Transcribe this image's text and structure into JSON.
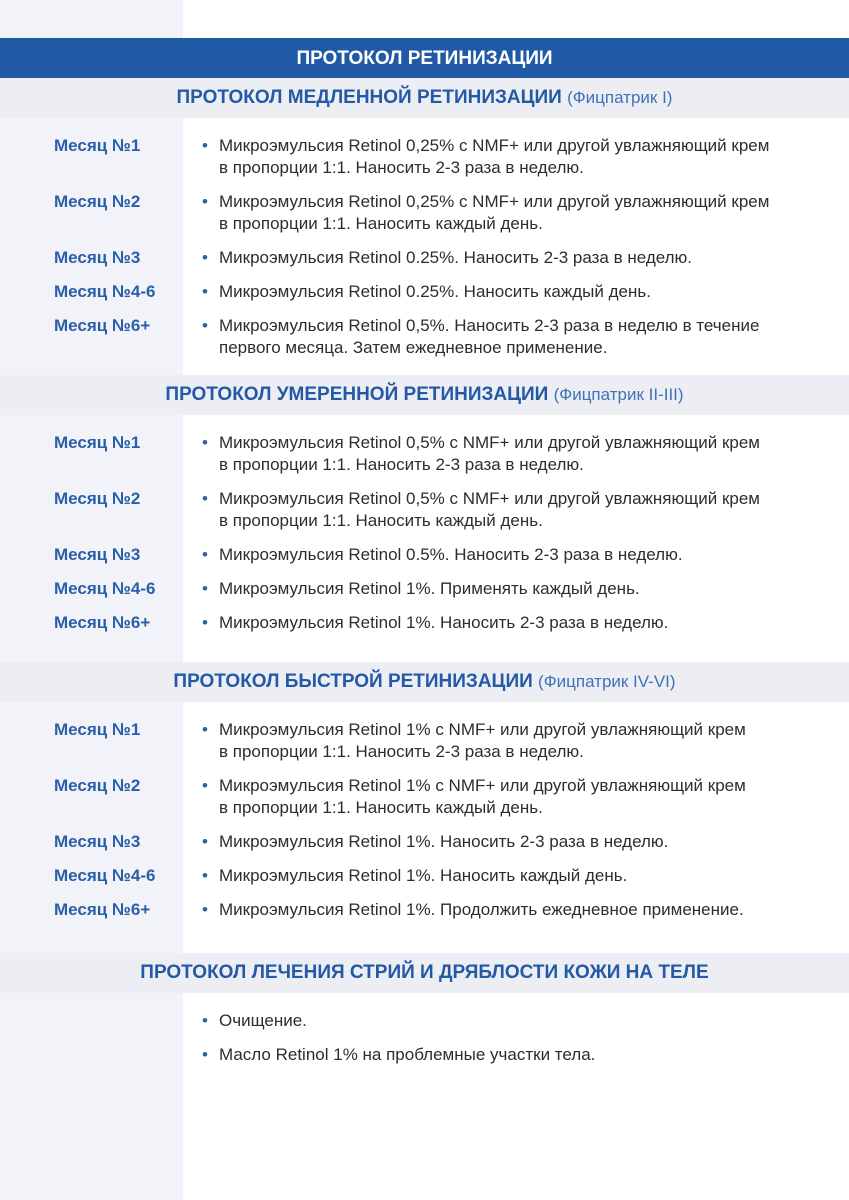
{
  "title": "ПРОТОКОЛ РЕТИНИЗАЦИИ",
  "colors": {
    "accent": "#2059a6",
    "section_bg": "#eceef3",
    "sidebar_bg": "#f1f3f8",
    "label": "#2a5ea8",
    "text": "#2d2d2d"
  },
  "sections": [
    {
      "title": "ПРОТОКОЛ МЕДЛЕННОЙ РЕТИНИЗАЦИИ",
      "subtitle": "(Фицпатрик I)",
      "rows": [
        {
          "label": "Месяц №1",
          "lines": [
            "Микроэмульсия Retinol 0,25% с NMF+ или другой увлажняющий крем",
            "в пропорции 1:1. Наносить 2-3 раза в неделю."
          ]
        },
        {
          "label": "Месяц №2",
          "lines": [
            "Микроэмульсия Retinol 0,25% с NMF+ или другой увлажняющий крем",
            "в пропорции 1:1. Наносить каждый день."
          ]
        },
        {
          "label": "Месяц №3",
          "lines": [
            "Микроэмульсия Retinol 0.25%. Наносить 2-3 раза в неделю."
          ]
        },
        {
          "label": "Месяц №4-6",
          "lines": [
            "Микроэмульсия Retinol 0.25%. Наносить каждый день."
          ]
        },
        {
          "label": "Месяц №6+",
          "lines": [
            "Микроэмульсия Retinol 0,5%. Наносить 2-3 раза в неделю в течение",
            "первого месяца. Затем ежедневное применение."
          ]
        }
      ]
    },
    {
      "title": "ПРОТОКОЛ УМЕРЕННОЙ РЕТИНИЗАЦИИ",
      "subtitle": "(Фицпатрик II-III)",
      "rows": [
        {
          "label": "Месяц №1",
          "lines": [
            "Микроэмульсия Retinol 0,5% с NMF+ или другой увлажняющий крем",
            "в пропорции 1:1. Наносить 2-3 раза в неделю."
          ]
        },
        {
          "label": "Месяц №2",
          "lines": [
            "Микроэмульсия Retinol 0,5% с NMF+ или другой увлажняющий крем",
            "в пропорции 1:1. Наносить каждый день."
          ]
        },
        {
          "label": "Месяц №3",
          "lines": [
            "Микроэмульсия Retinol 0.5%. Наносить 2-3 раза в неделю."
          ]
        },
        {
          "label": "Месяц №4-6",
          "lines": [
            "Микроэмульсия Retinol 1%. Применять каждый день."
          ]
        },
        {
          "label": "Месяц №6+",
          "lines": [
            "Микроэмульсия Retinol 1%. Наносить 2-3 раза в неделю."
          ]
        }
      ]
    },
    {
      "title": "ПРОТОКОЛ БЫСТРОЙ РЕТИНИЗАЦИИ",
      "subtitle": "(Фицпатрик IV-VI)",
      "rows": [
        {
          "label": "Месяц №1",
          "lines": [
            "Микроэмульсия Retinol 1% с NMF+ или другой увлажняющий крем",
            "в пропорции 1:1. Наносить 2-3 раза в неделю."
          ]
        },
        {
          "label": "Месяц №2",
          "lines": [
            "Микроэмульсия Retinol 1% с NMF+ или другой увлажняющий крем",
            "в пропорции 1:1. Наносить каждый день."
          ]
        },
        {
          "label": "Месяц №3",
          "lines": [
            "Микроэмульсия Retinol 1%. Наносить 2-3 раза в неделю."
          ]
        },
        {
          "label": "Месяц №4-6",
          "lines": [
            "Микроэмульсия Retinol 1%. Наносить каждый день."
          ]
        },
        {
          "label": "Месяц №6+",
          "lines": [
            "Микроэмульсия Retinol 1%. Продолжить ежедневное применение."
          ]
        }
      ]
    },
    {
      "title": "ПРОТОКОЛ ЛЕЧЕНИЯ СТРИЙ И ДРЯБЛОСТИ КОЖИ НА ТЕЛЕ",
      "subtitle": "",
      "rows": [
        {
          "label": "",
          "lines": [
            "Очищение."
          ]
        },
        {
          "label": "",
          "lines": [
            "Масло Retinol 1% на проблемные участки тела."
          ]
        }
      ]
    }
  ]
}
